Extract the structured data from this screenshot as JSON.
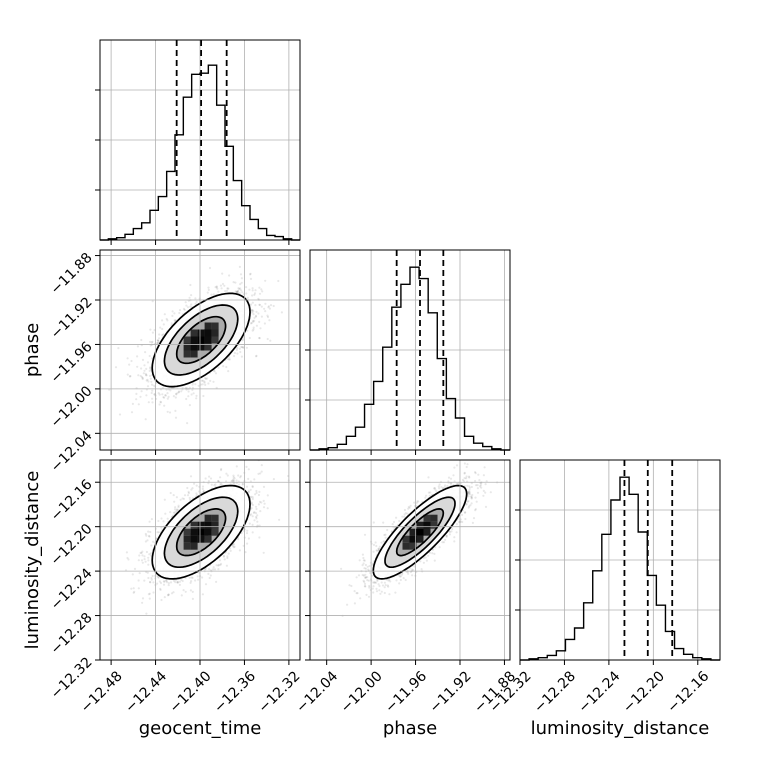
{
  "chart_data": {
    "type": "corner",
    "parameters": [
      "geocent_time",
      "phase",
      "luminosity_distance"
    ],
    "axis_labels": {
      "x": [
        "geocent_time",
        "phase",
        "luminosity_distance"
      ],
      "y": [
        "",
        "phase",
        "luminosity_distance"
      ]
    },
    "ranges": {
      "geocent_time": [
        -12.49,
        -12.31
      ],
      "phase": [
        -12.055,
        -11.875
      ],
      "luminosity_distance": [
        -12.32,
        -12.14
      ]
    },
    "ticks": {
      "geocent_time": [
        "−12.48",
        "−12.44",
        "−12.40",
        "−12.36",
        "−12.32"
      ],
      "phase": [
        "−12.04",
        "−12.00",
        "−11.96",
        "−11.92",
        "−11.88"
      ],
      "luminosity_distance": [
        "−12.32",
        "−12.28",
        "−12.24",
        "−12.20",
        "−12.16"
      ]
    },
    "tick_values": {
      "geocent_time": [
        -12.48,
        -12.44,
        -12.4,
        -12.36,
        -12.32
      ],
      "phase": [
        -12.04,
        -12.0,
        -11.96,
        -11.92,
        -11.88
      ],
      "luminosity_distance": [
        -12.32,
        -12.28,
        -12.24,
        -12.2,
        -12.16
      ]
    },
    "quantiles": {
      "geocent_time": [
        -12.421,
        -12.399,
        -12.376
      ],
      "phase": [
        -11.977,
        -11.956,
        -11.935
      ],
      "luminosity_distance": [
        -12.226,
        -12.205,
        -12.183
      ]
    },
    "histograms": {
      "geocent_time": [
        0,
        1,
        2,
        5,
        10,
        15,
        26,
        38,
        60,
        92,
        125,
        145,
        146,
        153,
        118,
        82,
        52,
        30,
        18,
        10,
        4,
        3,
        1,
        0
      ],
      "phase": [
        0,
        1,
        2,
        5,
        12,
        20,
        40,
        60,
        90,
        125,
        145,
        160,
        150,
        120,
        80,
        45,
        28,
        12,
        6,
        3,
        1,
        0
      ],
      "luminosity_distance": [
        0,
        1,
        2,
        4,
        8,
        18,
        28,
        50,
        78,
        110,
        140,
        160,
        145,
        112,
        74,
        48,
        25,
        10,
        5,
        2,
        1,
        0
      ]
    },
    "hist_ymax": 175,
    "contour_levels_sigma": [
      0.5,
      1.0,
      1.5,
      2.0
    ],
    "correlations": {
      "phase|geocent_time": 0.6,
      "luminosity_distance|geocent_time": 0.6,
      "luminosity_distance|phase": 0.82
    },
    "centers": {
      "geocent_time": -12.399,
      "phase": -11.956,
      "luminosity_distance": -12.205
    },
    "sigmas": {
      "geocent_time": 0.022,
      "phase": 0.021,
      "luminosity_distance": 0.021
    },
    "grid": true
  }
}
